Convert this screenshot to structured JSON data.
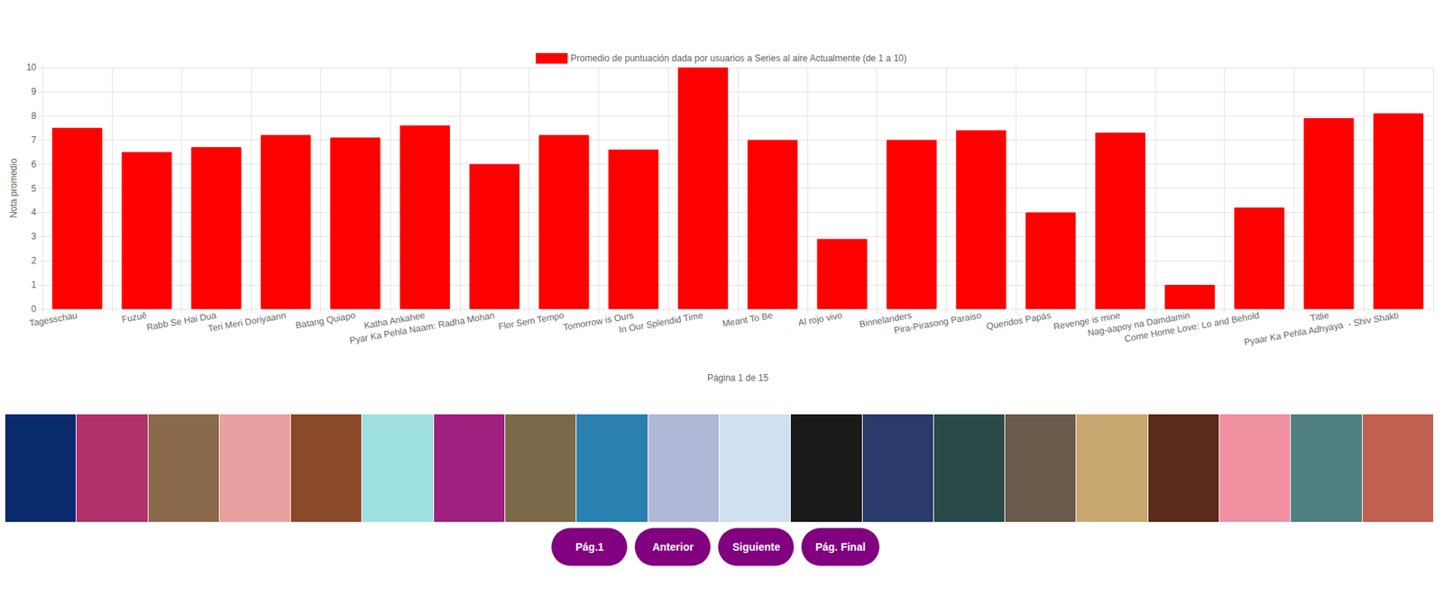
{
  "chart_data": {
    "type": "bar",
    "categories": [
      "Tagesschau",
      "Fuzuê",
      "Rabb Se Hai Dua",
      "Teri Meri Doriyaann",
      "Batang Quiapo",
      "Katha Ankahee",
      "Pyar Ka Pehla Naam: Radha Mohan",
      "Flor Sem Tempo",
      "Tomorrow is Ours",
      "In Our Splendid Time",
      "Meant To Be",
      "Al rojo vivo",
      "Binnelanders",
      "Pira-Pirasong Paraiso",
      "Queridos Papás",
      "Revenge is mine",
      "Nag-aapoy na Damdamin",
      "Come Home Love: Lo and Behold",
      "Titlie",
      "Pyaar Ka Pehla Adhyaya  - Shiv Shakti"
    ],
    "series": [
      {
        "name": "Promedio de puntuación dada por usuarios a Series al aire Actualmente (de 1 a 10)",
        "color": "#ff0000",
        "values": [
          7.5,
          6.5,
          6.7,
          7.2,
          7.1,
          7.6,
          6.0,
          7.2,
          6.6,
          10,
          7.0,
          2.9,
          7.0,
          7.4,
          4.0,
          7.3,
          1.0,
          4.2,
          7.9,
          8.1
        ]
      }
    ],
    "y_label": "Nota promedio",
    "x_label": "Página 1 de 15",
    "ylim": [
      0,
      10
    ],
    "yticks": [
      0,
      1,
      2,
      3,
      4,
      5,
      6,
      7,
      8,
      9,
      10
    ],
    "grid": true,
    "legend": "top"
  },
  "buttons": [
    "Pág.1",
    "Anterior",
    "Siguiente",
    "Pág. Final"
  ]
}
